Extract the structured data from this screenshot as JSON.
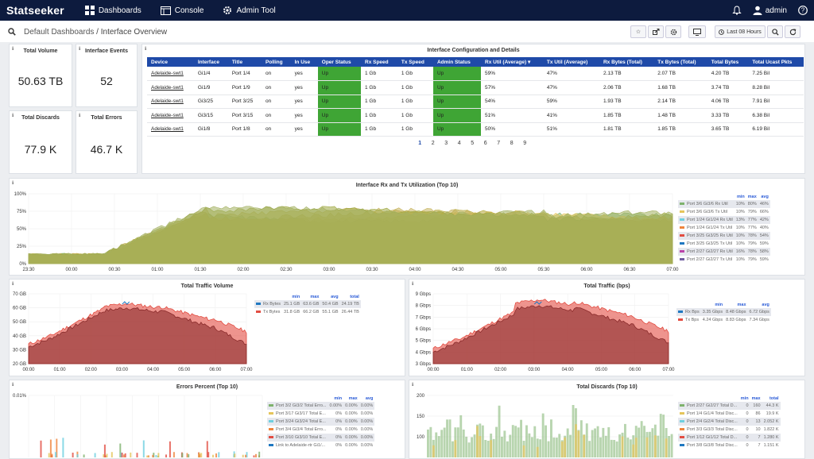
{
  "app": {
    "logo": "Statseeker",
    "nav": [
      "Dashboards",
      "Console",
      "Admin Tool"
    ],
    "user": "admin"
  },
  "breadcrumb": {
    "parent": "Default Dashboards",
    "sep": " / ",
    "title": "Interface Overview"
  },
  "toolbar": {
    "time_range": "Last 08 Hours"
  },
  "stats": [
    {
      "title": "Total Volume",
      "value": "50.63 TB"
    },
    {
      "title": "Interface Events",
      "value": "52"
    },
    {
      "title": "Total Discards",
      "value": "77.9 K"
    },
    {
      "title": "Total Errors",
      "value": "46.7 K"
    }
  ],
  "config": {
    "title": "Interface Configuration and Details",
    "columns": [
      "Device",
      "Interface",
      "Title",
      "Polling",
      "In Use",
      "Oper Status",
      "Rx Speed",
      "Tx Speed",
      "Admin Status",
      "Rx Util (Average) ▾",
      "Tx Util (Average)",
      "Rx Bytes (Total)",
      "Tx Bytes (Total)",
      "Total Bytes",
      "Total Ucast Pkts"
    ],
    "rows": [
      [
        "Adelaide-swt1",
        "Gi1/4",
        "Port 1/4",
        "on",
        "yes",
        "Up",
        "1 Gb",
        "1 Gb",
        "Up",
        "59%",
        "47%",
        "2.13 TB",
        "2.07 TB",
        "4.20 TB",
        "7.25 Bil"
      ],
      [
        "Adelaide-swt1",
        "Gi1/9",
        "Port 1/9",
        "on",
        "yes",
        "Up",
        "1 Gb",
        "1 Gb",
        "Up",
        "57%",
        "47%",
        "2.06 TB",
        "1.68 TB",
        "3.74 TB",
        "8.28 Bil"
      ],
      [
        "Adelaide-swt1",
        "Gi3/25",
        "Port 3/25",
        "on",
        "yes",
        "Up",
        "1 Gb",
        "1 Gb",
        "Up",
        "54%",
        "59%",
        "1.93 TB",
        "2.14 TB",
        "4.06 TB",
        "7.91 Bil"
      ],
      [
        "Adelaide-swt1",
        "Gi3/15",
        "Port 3/15",
        "on",
        "yes",
        "Up",
        "1 Gb",
        "1 Gb",
        "Up",
        "51%",
        "41%",
        "1.85 TB",
        "1.48 TB",
        "3.33 TB",
        "6.38 Bil"
      ],
      [
        "Adelaide-swt1",
        "Gi1/8",
        "Port 1/8",
        "on",
        "yes",
        "Up",
        "1 Gb",
        "1 Gb",
        "Up",
        "50%",
        "51%",
        "1.81 TB",
        "1.85 TB",
        "3.65 TB",
        "6.19 Bil"
      ]
    ],
    "pages": [
      "1",
      "2",
      "3",
      "4",
      "5",
      "6",
      "7",
      "8",
      "9"
    ]
  },
  "chart_data": [
    {
      "type": "area",
      "title": "Interface Rx and Tx Utilization (Top 10)",
      "ylim": [
        0,
        100
      ],
      "yticks": [
        "100%",
        "75%",
        "50%",
        "25%",
        "0%"
      ],
      "xticks": [
        "23:30",
        "00:00",
        "00:30",
        "01:00",
        "01:30",
        "02:00",
        "02:30",
        "03:00",
        "03:30",
        "04:00",
        "04:30",
        "05:00",
        "05:30",
        "06:00",
        "06:30",
        "07:00"
      ],
      "legend_head": [
        "min",
        "max",
        "avg"
      ],
      "series": [
        {
          "name": "Port 3/6 Gi3/6 Rx Util",
          "min": "10%",
          "max": "80%",
          "avg": "46%",
          "color": "#7eb26d"
        },
        {
          "name": "Port 3/6 Gi3/6 Tx Util",
          "min": "10%",
          "max": "79%",
          "avg": "66%",
          "color": "#e5c55b"
        },
        {
          "name": "Port 1/24 Gi1/24 Rx Util",
          "min": "13%",
          "max": "77%",
          "avg": "42%",
          "color": "#6ed0e0"
        },
        {
          "name": "Port 1/24 Gi1/24 Tx Util",
          "min": "10%",
          "max": "77%",
          "avg": "40%",
          "color": "#ef843c"
        },
        {
          "name": "Port 3/25 Gi3/25 Rx Util",
          "min": "10%",
          "max": "78%",
          "avg": "54%",
          "color": "#e24d42"
        },
        {
          "name": "Port 3/25 Gi3/25 Tx Util",
          "min": "10%",
          "max": "79%",
          "avg": "59%",
          "color": "#1f78c1"
        },
        {
          "name": "Port 2/27 Gi2/27 Rx Util",
          "min": "16%",
          "max": "78%",
          "avg": "58%",
          "color": "#ba43a9"
        },
        {
          "name": "Port 2/27 Gi2/27 Tx Util",
          "min": "10%",
          "max": "79%",
          "avg": "59%",
          "color": "#705da0"
        }
      ]
    },
    {
      "type": "area",
      "title": "Total Traffic Volume",
      "ylim": [
        20,
        70
      ],
      "yticks": [
        "70 GB",
        "60 GB",
        "50 GB",
        "40 GB",
        "30 GB",
        "20 GB"
      ],
      "xticks": [
        "00:00",
        "01:00",
        "02:00",
        "03:00",
        "04:00",
        "05:00",
        "06:00",
        "07:00"
      ],
      "legend_head": [
        "min",
        "max",
        "avg",
        "total"
      ],
      "series": [
        {
          "name": "Rx Bytes",
          "min": "25.1 GB",
          "max": "63.6 GB",
          "avg": "50.4 GB",
          "total": "24.19 TB",
          "color": "#1f78c1"
        },
        {
          "name": "Tx Bytes",
          "min": "31.8 GB",
          "max": "66.2 GB",
          "avg": "55.1 GB",
          "total": "26.44 TB",
          "color": "#e24d42"
        }
      ]
    },
    {
      "type": "area",
      "title": "Total Traffic (bps)",
      "ylim": [
        3,
        9
      ],
      "yticks": [
        "9 Gbps",
        "8 Gbps",
        "7 Gbps",
        "6 Gbps",
        "5 Gbps",
        "4 Gbps",
        "3 Gbps"
      ],
      "xticks": [
        "00:00",
        "01:00",
        "02:00",
        "03:00",
        "04:00",
        "05:00",
        "06:00",
        "07:00"
      ],
      "legend_head": [
        "min",
        "max",
        "avg"
      ],
      "series": [
        {
          "name": "Rx Bps",
          "min": "3.35 Gbps",
          "max": "8.48 Gbps",
          "avg": "6.72 Gbps",
          "color": "#1f78c1"
        },
        {
          "name": "Tx Bps",
          "min": "4.24 Gbps",
          "max": "8.83 Gbps",
          "avg": "7.34 Gbps",
          "color": "#e24d42"
        }
      ]
    },
    {
      "type": "bar",
      "title": "Errors Percent (Top 10)",
      "yticks": [
        "0.01%"
      ],
      "legend_head": [
        "min",
        "max",
        "avg"
      ],
      "series": [
        {
          "name": "Port 3/2 Gi3/2 Total Erro...",
          "min": "0.00%",
          "max": "0.00%",
          "avg": "0.00%",
          "color": "#7eb26d"
        },
        {
          "name": "Port 3/17 Gi3/17 Total E...",
          "min": "0%",
          "max": "0.00%",
          "avg": "0.00%",
          "color": "#e5c55b"
        },
        {
          "name": "Port 3/24 Gi3/24 Total E...",
          "min": "0%",
          "max": "0.00%",
          "avg": "0.00%",
          "color": "#6ed0e0"
        },
        {
          "name": "Port 3/4 Gi3/4 Total Erro...",
          "min": "0%",
          "max": "0.00%",
          "avg": "0.00%",
          "color": "#ef843c"
        },
        {
          "name": "Port 3/10 Gi3/10 Total E...",
          "min": "0%",
          "max": "0.00%",
          "avg": "0.00%",
          "color": "#e24d42"
        },
        {
          "name": "Link to Adelaide-rtr Gi1/...",
          "min": "0%",
          "max": "0.00%",
          "avg": "0.00%",
          "color": "#1f78c1"
        }
      ]
    },
    {
      "type": "bar",
      "title": "Total Discards (Top 10)",
      "yticks": [
        "200",
        "150",
        "100"
      ],
      "legend_head": [
        "min",
        "max",
        "total"
      ],
      "series": [
        {
          "name": "Port 2/27 Gi2/27 Total D...",
          "min": "0",
          "max": "160",
          "total": "44.3 K",
          "color": "#7eb26d"
        },
        {
          "name": "Port 1/4 Gi1/4 Total Disc...",
          "min": "0",
          "max": "86",
          "total": "19.9 K",
          "color": "#e5c55b"
        },
        {
          "name": "Port 2/4 Gi2/4 Total Disc...",
          "min": "0",
          "max": "13",
          "total": "2.052 K",
          "color": "#6ed0e0"
        },
        {
          "name": "Port 3/3 Gi3/3 Total Disc...",
          "min": "0",
          "max": "10",
          "total": "1.822 K",
          "color": "#ef843c"
        },
        {
          "name": "Port 1/12 Gi1/12 Total D...",
          "min": "0",
          "max": "7",
          "total": "1.280 K",
          "color": "#e24d42"
        },
        {
          "name": "Port 3/8 Gi3/8 Total Disc...",
          "min": "0",
          "max": "7",
          "total": "1.151 K",
          "color": "#1f78c1"
        }
      ]
    }
  ]
}
